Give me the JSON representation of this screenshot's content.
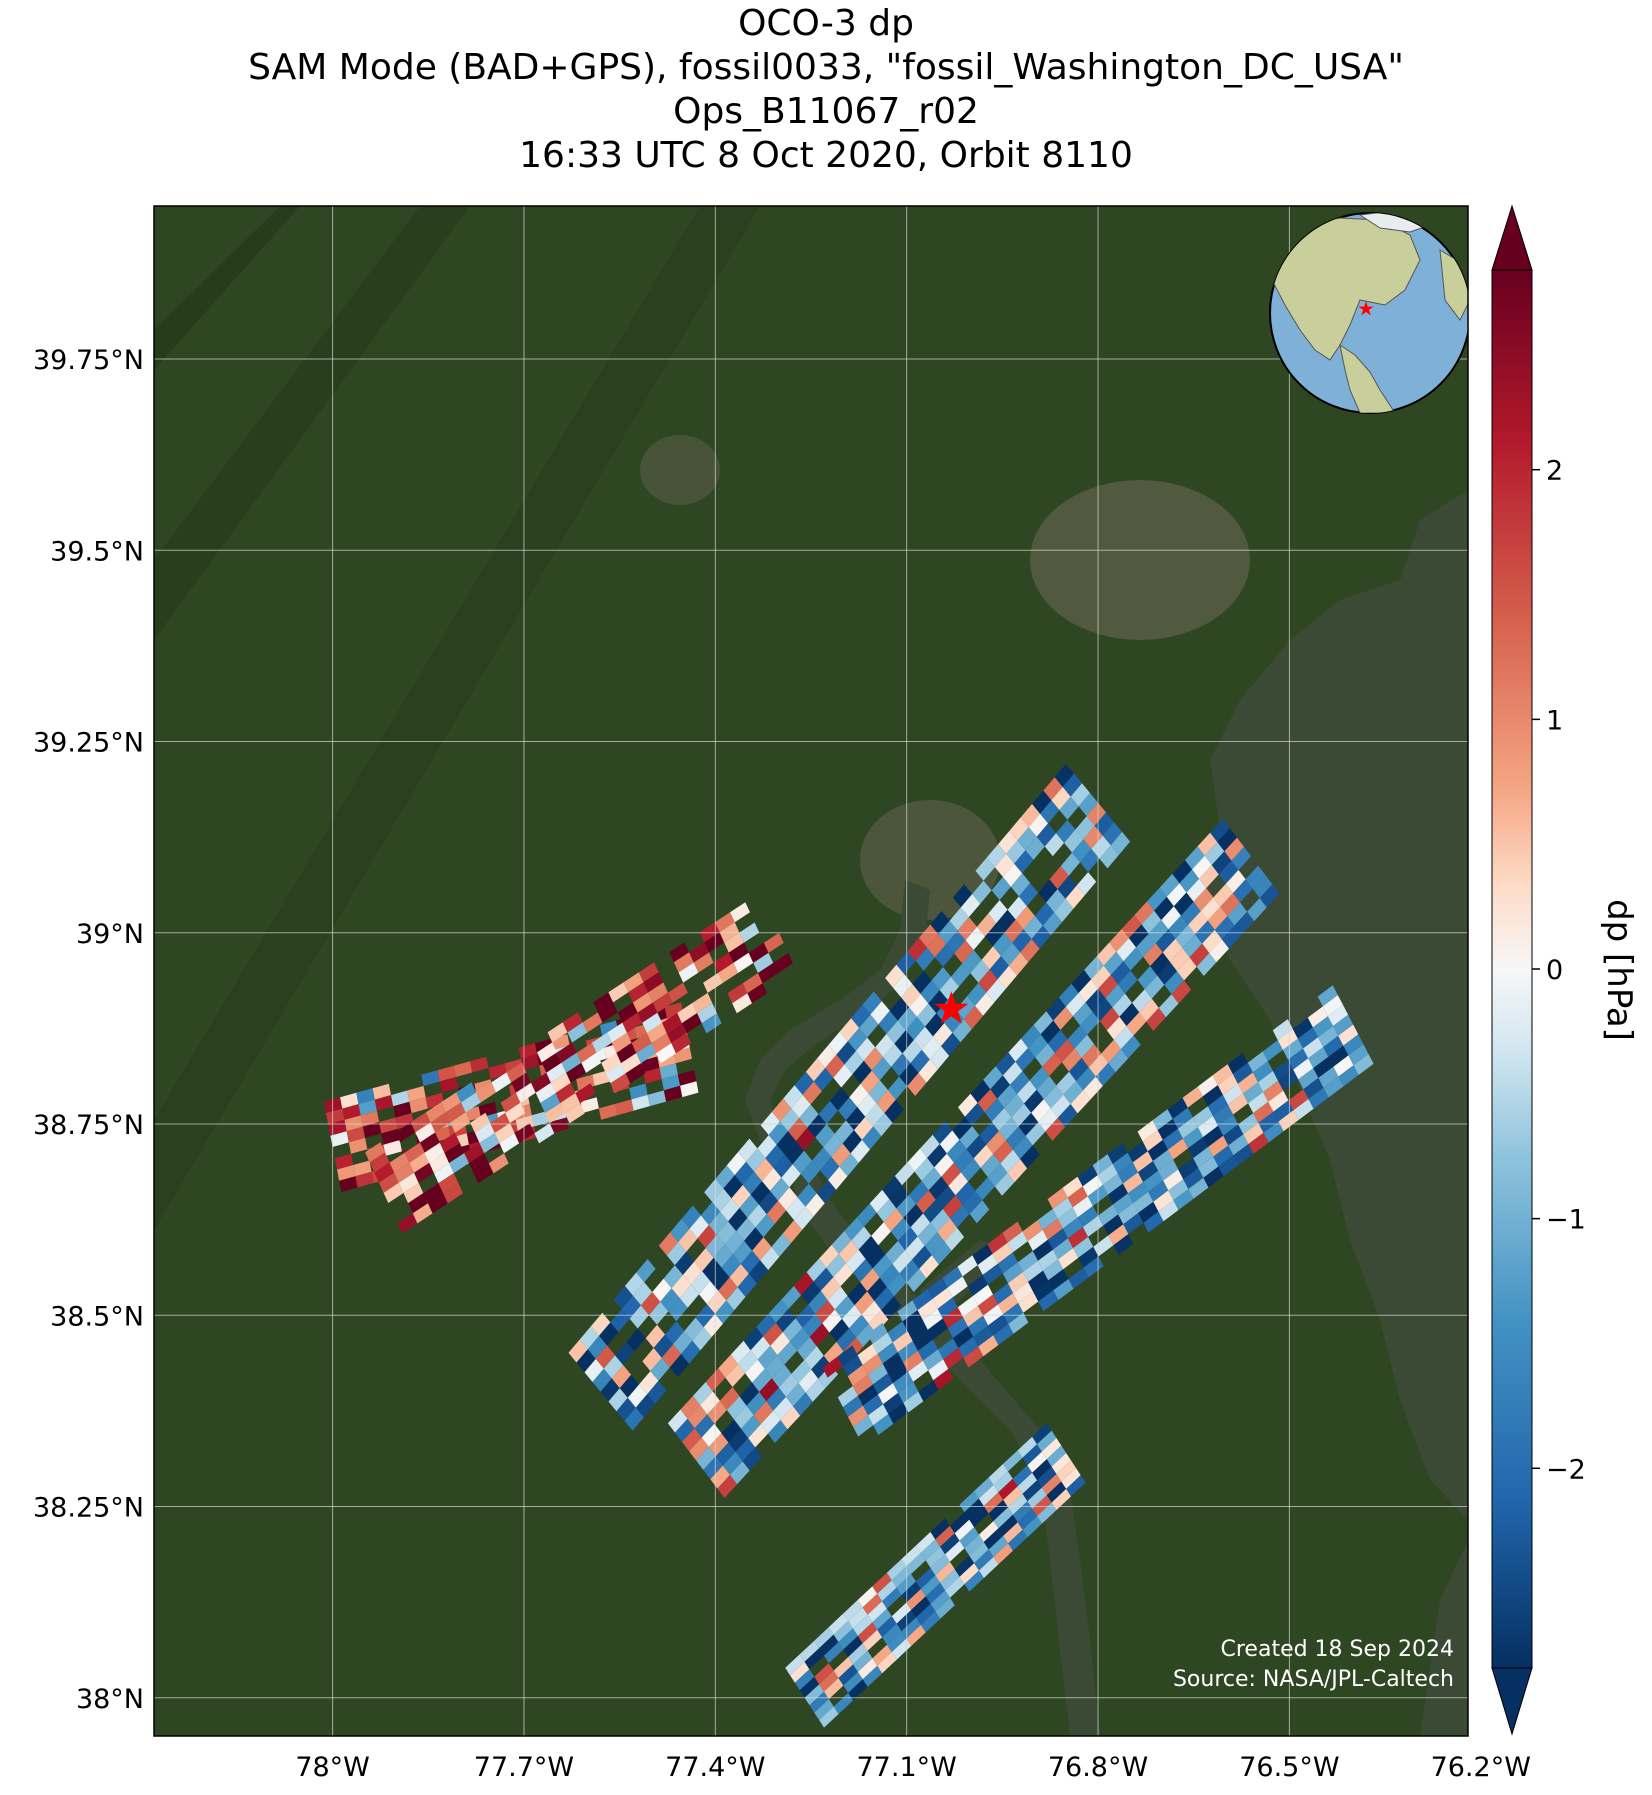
{
  "title": {
    "line1": "OCO-3 dp",
    "line2": "SAM Mode (BAD+GPS), fossil0033, \"fossil_Washington_DC_USA\"",
    "line3": "Ops_B11067_r02",
    "line4": "16:33 UTC 8 Oct 2020, Orbit 8110"
  },
  "credits": {
    "created": "Created 18 Sep 2024",
    "source": "Source: NASA/JPL-Caltech"
  },
  "colors": {
    "land": "#2f4622",
    "water": "#3b4a35",
    "urban": "#6e6a58",
    "target_star": "#ff0000",
    "grid": "#d8d8d8"
  },
  "chart_data": {
    "type": "heatmap",
    "title": "OCO-3 dp",
    "xlabel": "",
    "ylabel": "",
    "xlim": [
      -78.28,
      -76.22
    ],
    "ylim": [
      37.95,
      39.95
    ],
    "x_ticks": [
      -78.0,
      -77.7,
      -77.4,
      -77.1,
      -76.8,
      -76.5,
      -76.2
    ],
    "x_tick_labels": [
      "78°W",
      "77.7°W",
      "77.4°W",
      "77.1°W",
      "76.8°W",
      "76.5°W",
      "76.2°W"
    ],
    "y_ticks": [
      39.75,
      39.5,
      39.25,
      39.0,
      38.75,
      38.5,
      38.25,
      38.0
    ],
    "y_tick_labels": [
      "39.75°N",
      "39.5°N",
      "39.25°N",
      "39°N",
      "38.75°N",
      "38.5°N",
      "38.25°N",
      "38°N"
    ],
    "grid": true,
    "colorbar": {
      "label": "dp [hPa]",
      "cmap": "RdBu_r",
      "range": [
        -2.8,
        2.8
      ],
      "ticks": [
        2,
        1,
        0,
        -1,
        -2
      ],
      "tick_labels": [
        "2",
        "1",
        "0",
        "−1",
        "−2"
      ],
      "extend": "both"
    },
    "target": {
      "name": "fossil_Washington_DC_USA",
      "lon": -77.03,
      "lat": 38.9
    },
    "inset_globe": true,
    "swaths": [
      {
        "lon_start": -78.0,
        "lat_start": 38.72,
        "lon_end": -77.44,
        "lat_end": 38.85
      },
      {
        "lon_start": -77.92,
        "lat_start": 38.66,
        "lon_end": -77.3,
        "lat_end": 39.0
      },
      {
        "lon_start": -77.58,
        "lat_start": 38.4,
        "lon_end": -76.8,
        "lat_end": 39.17
      },
      {
        "lon_start": -77.43,
        "lat_start": 38.31,
        "lon_end": -76.56,
        "lat_end": 39.1
      },
      {
        "lon_start": -77.2,
        "lat_start": 38.38,
        "lon_end": -76.4,
        "lat_end": 38.88
      },
      {
        "lon_start": -77.26,
        "lat_start": 38.0,
        "lon_end": -76.85,
        "lat_end": 38.32
      }
    ]
  }
}
